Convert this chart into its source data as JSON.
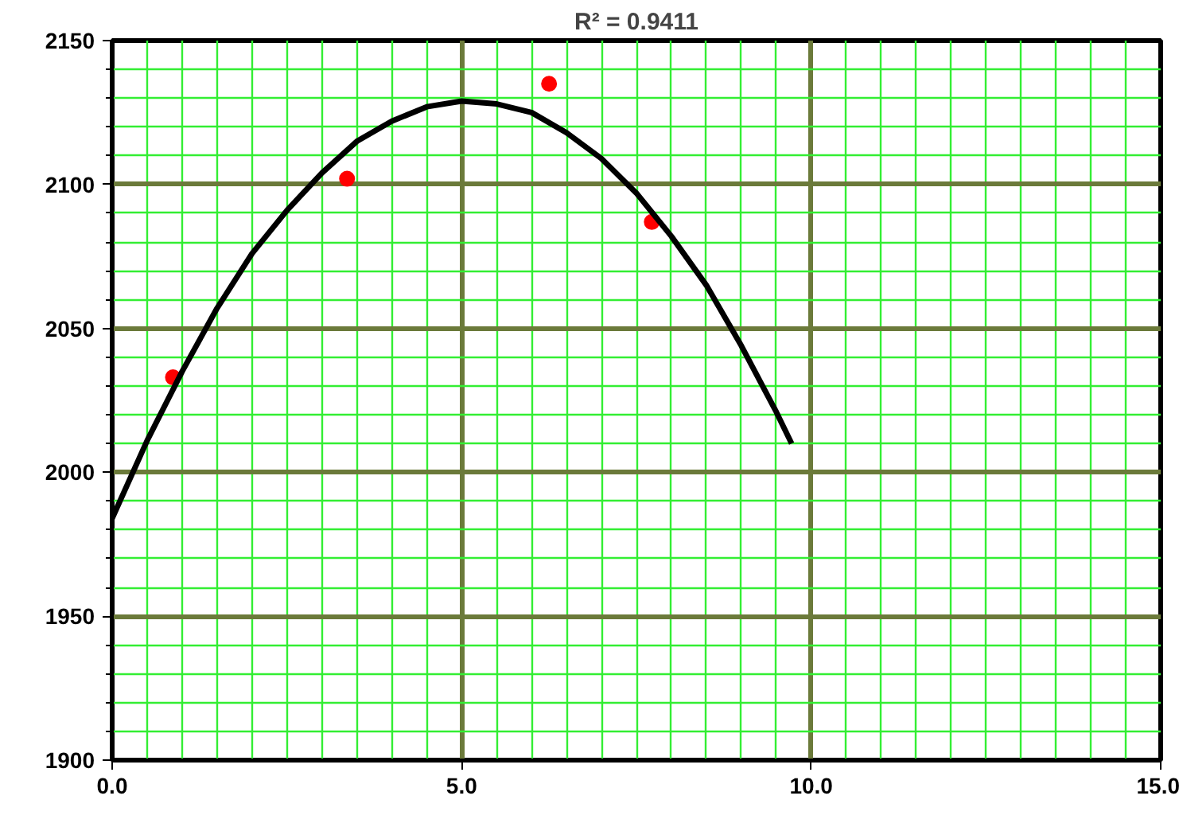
{
  "chart_data": {
    "type": "scatter",
    "annotations": [
      "R² = 0.9411"
    ],
    "xlim": [
      0,
      15
    ],
    "ylim": [
      1900,
      2150
    ],
    "xticks": [
      {
        "value": 0,
        "label": "0.0"
      },
      {
        "value": 0.5,
        "label": null
      },
      {
        "value": 1,
        "label": null
      },
      {
        "value": 1.5,
        "label": null
      },
      {
        "value": 2,
        "label": null
      },
      {
        "value": 2.5,
        "label": null
      },
      {
        "value": 3,
        "label": null
      },
      {
        "value": 3.5,
        "label": null
      },
      {
        "value": 4,
        "label": null
      },
      {
        "value": 4.5,
        "label": null
      },
      {
        "value": 5,
        "label": "5.0"
      },
      {
        "value": 5.5,
        "label": null
      },
      {
        "value": 6,
        "label": null
      },
      {
        "value": 6.5,
        "label": null
      },
      {
        "value": 7,
        "label": null
      },
      {
        "value": 7.5,
        "label": null
      },
      {
        "value": 8,
        "label": null
      },
      {
        "value": 8.5,
        "label": null
      },
      {
        "value": 9,
        "label": null
      },
      {
        "value": 9.5,
        "label": null
      },
      {
        "value": 10,
        "label": "10.0"
      },
      {
        "value": 10.5,
        "label": null
      },
      {
        "value": 11,
        "label": null
      },
      {
        "value": 11.5,
        "label": null
      },
      {
        "value": 12,
        "label": null
      },
      {
        "value": 12.5,
        "label": null
      },
      {
        "value": 13,
        "label": null
      },
      {
        "value": 13.5,
        "label": null
      },
      {
        "value": 14,
        "label": null
      },
      {
        "value": 14.5,
        "label": null
      },
      {
        "value": 15,
        "label": "15.0"
      }
    ],
    "yticks": [
      1900,
      {
        "value": 1910,
        "label": null
      },
      {
        "value": 1920,
        "label": null
      },
      {
        "value": 1930,
        "label": null
      },
      {
        "value": 1940,
        "label": null
      },
      1950,
      {
        "value": 1960,
        "label": null
      },
      {
        "value": 1970,
        "label": null
      },
      {
        "value": 1980,
        "label": null
      },
      {
        "value": 1990,
        "label": null
      },
      2000,
      {
        "value": 2010,
        "label": null
      },
      {
        "value": 2020,
        "label": null
      },
      {
        "value": 2030,
        "label": null
      },
      {
        "value": 2040,
        "label": null
      },
      2050,
      {
        "value": 2060,
        "label": null
      },
      {
        "value": 2070,
        "label": null
      },
      {
        "value": 2080,
        "label": null
      },
      {
        "value": 2090,
        "label": null
      },
      2100,
      {
        "value": 2110,
        "label": null
      },
      {
        "value": 2120,
        "label": null
      },
      {
        "value": 2130,
        "label": null
      },
      {
        "value": 2140,
        "label": null
      },
      2150
    ],
    "grid": true,
    "series": [
      {
        "color": "#ff0000",
        "marker": "circle",
        "x": [
          0.87,
          3.36,
          6.25,
          7.72
        ],
        "values": [
          2033,
          2102,
          2135,
          2087
        ]
      },
      {
        "type": "line",
        "color": "#000000",
        "marker": "none",
        "line_style": "solid",
        "x": [
          0,
          0.5,
          1,
          1.5,
          2,
          2.5,
          3,
          3.5,
          4,
          4.5,
          5,
          5.5,
          6,
          6.5,
          7,
          7.5,
          8,
          8.5,
          9,
          9.5,
          9.72
        ],
        "values": [
          1984,
          2011,
          2035,
          2057,
          2076,
          2091,
          2104,
          2115,
          2122,
          2127,
          2129,
          2128,
          2125,
          2118,
          2109,
          2097,
          2082,
          2065,
          2044,
          2021,
          2010
        ]
      }
    ]
  }
}
